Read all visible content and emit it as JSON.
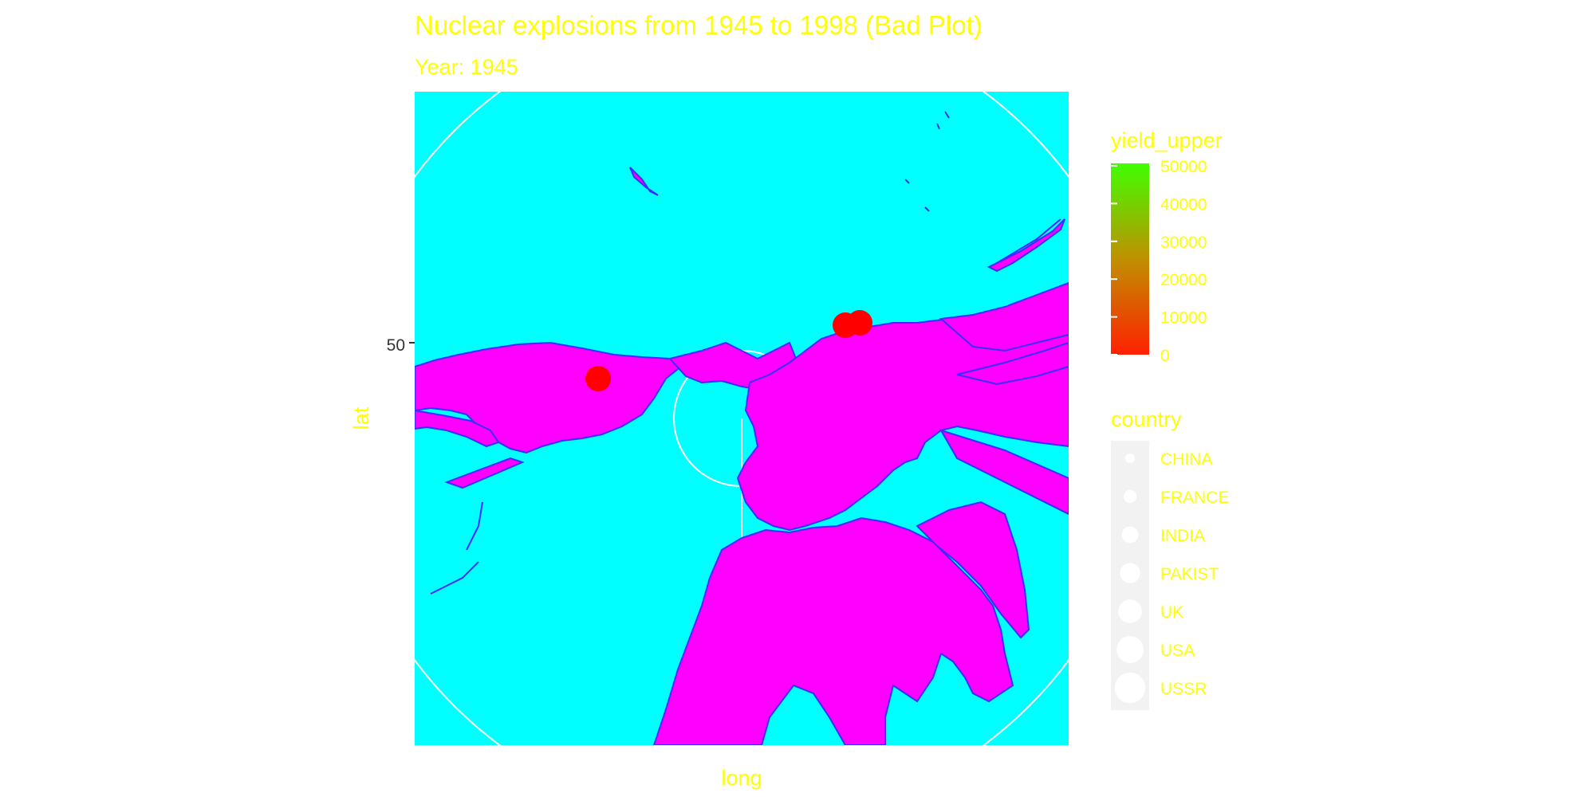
{
  "chart_data": {
    "type": "scatter",
    "title": "Nuclear explosions from 1945 to 1998 (Bad Plot)",
    "subtitle": "Year: 1945",
    "xlabel": "long",
    "ylabel": "lat",
    "y_ticks": [
      50
    ],
    "projection": "polar (north pole centered)",
    "grid": true,
    "series": [
      {
        "name": "USA",
        "points": [
          {
            "long": -106.5,
            "lat": 33.7,
            "yield_upper": 0
          },
          {
            "long": 132.5,
            "lat": 34.4,
            "yield_upper": 0
          },
          {
            "long": 129.9,
            "lat": 32.8,
            "yield_upper": 0
          }
        ]
      }
    ],
    "legend_yield": {
      "title": "yield_upper",
      "ticks": [
        "50000",
        "40000",
        "30000",
        "20000",
        "10000",
        "0"
      ],
      "colors": {
        "low": "#ff2000",
        "mid": "#c09000",
        "high": "#40ff00"
      },
      "placement": "right"
    },
    "legend_country": {
      "title": "country",
      "entries": [
        "CHINA",
        "FRANCE",
        "INDIA",
        "PAKIST",
        "UK",
        "USA",
        "USSR"
      ],
      "placement": "right"
    },
    "colors": {
      "panel": "#00ffff",
      "land_fill": "#ff00ff",
      "land_border": "#3a2cff",
      "points": "#ff0000",
      "text": "#ffff00",
      "grid": "#ffffff",
      "legend_key_bg": "#f2f2f2"
    }
  }
}
